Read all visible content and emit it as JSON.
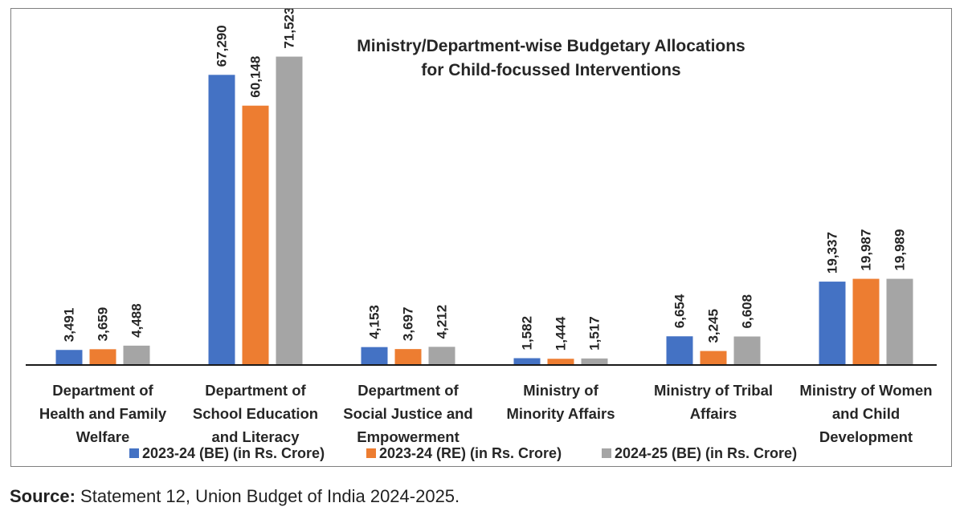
{
  "chart_data": {
    "type": "bar",
    "title": "Ministry/Department-wise Budgetary Allocations for Child-focussed Interventions",
    "title_lines": [
      "Ministry/Department-wise Budgetary Allocations",
      "for Child-focussed Interventions"
    ],
    "categories": [
      [
        "Department of",
        "Health and Family",
        "Welfare"
      ],
      [
        "Department of",
        "School Education",
        "and Literacy"
      ],
      [
        "Department of",
        "Social Justice and",
        "Empowerment"
      ],
      [
        "Ministry of",
        "Minority Affairs"
      ],
      [
        "Ministry of Tribal",
        "Affairs"
      ],
      [
        "Ministry of Women",
        "and Child",
        "Development"
      ]
    ],
    "series": [
      {
        "name": "2023-24 (BE) (in Rs. Crore)",
        "color": "#4472c4",
        "values": [
          3491,
          67290,
          4153,
          1582,
          6654,
          19337
        ],
        "labels": [
          "3,491",
          "67,290",
          "4,153",
          "1,582",
          "6,654",
          "19,337"
        ]
      },
      {
        "name": "2023-24 (RE) (in Rs. Crore)",
        "color": "#ed7d31",
        "values": [
          3659,
          60148,
          3697,
          1444,
          3245,
          19987
        ],
        "labels": [
          "3,659",
          "60,148",
          "3,697",
          "1,444",
          "3,245",
          "19,987"
        ]
      },
      {
        "name": "2024-25 (BE) (in Rs. Crore)",
        "color": "#a5a5a5",
        "values": [
          4488,
          71523,
          4212,
          1517,
          6608,
          19989
        ],
        "labels": [
          "4,488",
          "71,523",
          "4,212",
          "1,517",
          "6,608",
          "19,989"
        ]
      }
    ],
    "ylim": [
      0,
      80000
    ],
    "grid": false,
    "legend": "bottom"
  },
  "source": {
    "label": "Source:",
    "text": " Statement 12, Union Budget of India 2024-2025."
  }
}
